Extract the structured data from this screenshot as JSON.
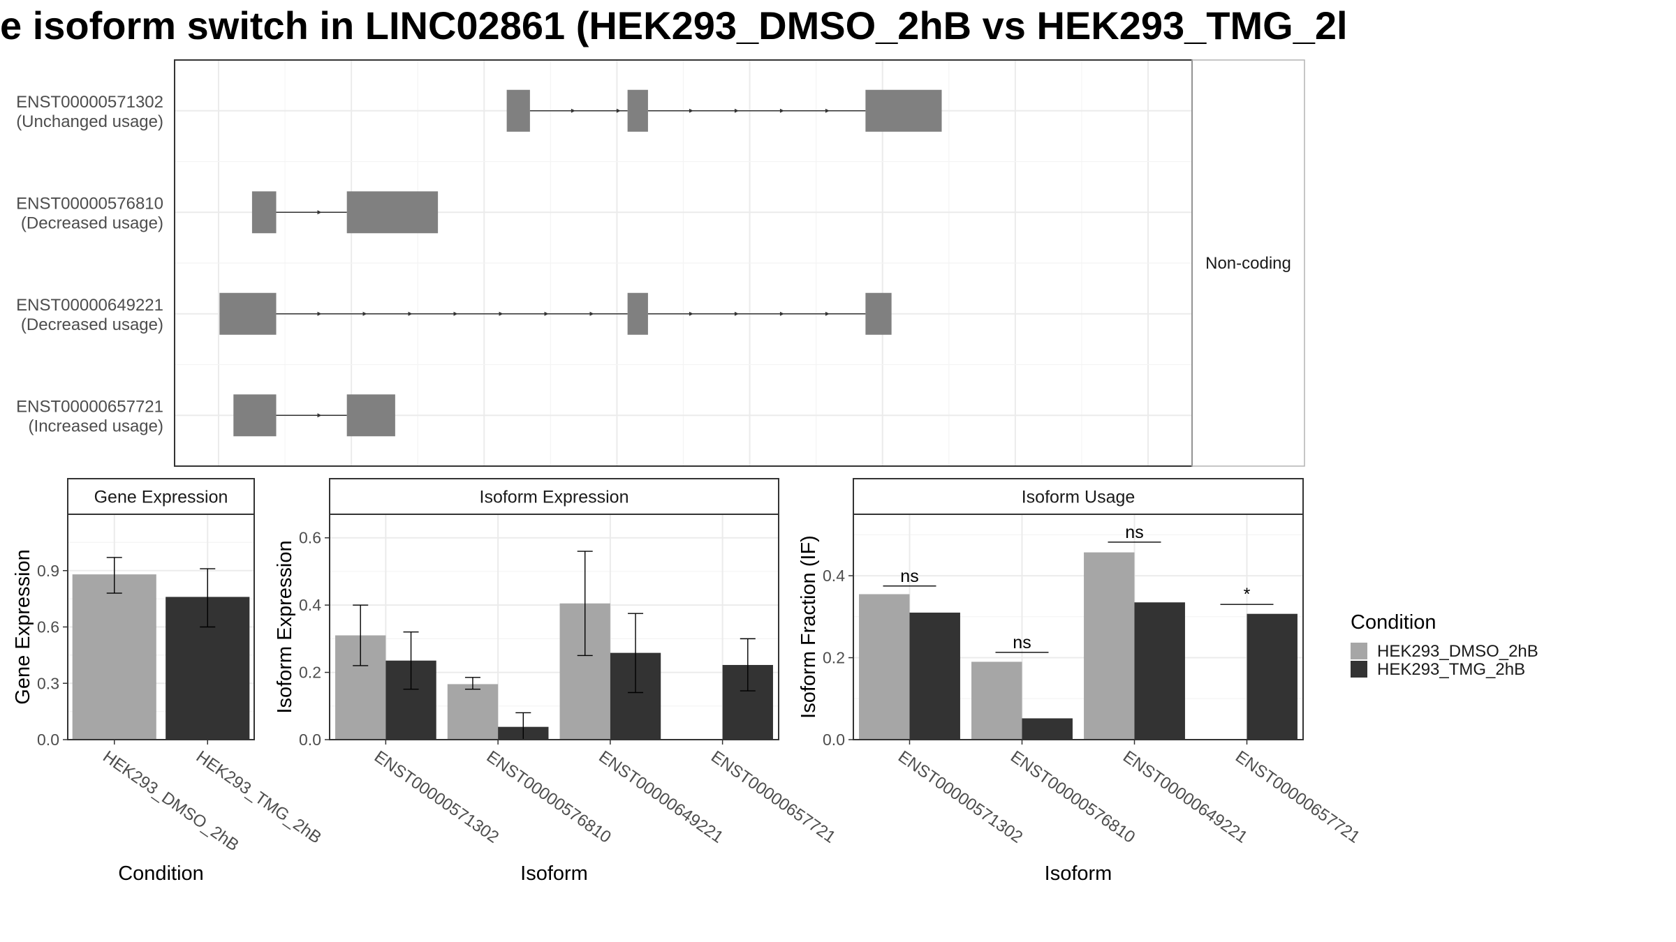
{
  "title": "e isoform switch in LINC02861 (HEK293_DMSO_2hB vs HEK293_TMG_2l",
  "colors": {
    "dmso": "#a6a6a6",
    "tmg": "#333333",
    "exon": "#808080",
    "grid": "#ebebeb",
    "frame": "#333333",
    "strip_bg": "#ffffff"
  },
  "chart_data": [
    {
      "type": "gene-structure",
      "facet_label": "Non-coding",
      "genomic_range": [
        0,
        1000
      ],
      "isoforms": [
        {
          "id": "ENST00000571302",
          "usage": "(Unchanged usage)",
          "exons": [
            [
              310,
              335
            ],
            [
              440,
              462
            ],
            [
              696,
              778
            ]
          ]
        },
        {
          "id": "ENST00000576810",
          "usage": "(Decreased usage)",
          "exons": [
            [
              36,
              62
            ],
            [
              138,
              236
            ]
          ]
        },
        {
          "id": "ENST00000649221",
          "usage": "(Decreased usage)",
          "exons": [
            [
              1,
              62
            ],
            [
              440,
              462
            ],
            [
              696,
              724
            ]
          ]
        },
        {
          "id": "ENST00000657721",
          "usage": "(Increased usage)",
          "exons": [
            [
              16,
              62
            ],
            [
              138,
              190
            ]
          ]
        }
      ]
    },
    {
      "type": "bar",
      "strip": "Gene Expression",
      "xlabel": "Condition",
      "ylabel": "Gene Expression",
      "ylim": [
        0,
        1.2
      ],
      "yticks": [
        "0.0",
        "0.3",
        "0.6",
        "0.9"
      ],
      "categories": [
        "HEK293_DMSO_2hB",
        "HEK293_TMG_2hB"
      ],
      "values": [
        0.88,
        0.76
      ],
      "error_low": [
        0.78,
        0.6
      ],
      "error_high": [
        0.97,
        0.91
      ]
    },
    {
      "type": "bar",
      "strip": "Isoform Expression",
      "xlabel": "Isoform",
      "ylabel": "Isoform Expression",
      "ylim": [
        0,
        0.67
      ],
      "yticks": [
        "0.0",
        "0.2",
        "0.4",
        "0.6"
      ],
      "categories": [
        "ENST00000571302",
        "ENST00000576810",
        "ENST00000649221",
        "ENST00000657721"
      ],
      "series": [
        {
          "name": "HEK293_DMSO_2hB",
          "values": [
            0.31,
            0.165,
            0.405,
            0.0
          ],
          "error_low": [
            0.22,
            0.15,
            0.25,
            0.0
          ],
          "error_high": [
            0.4,
            0.185,
            0.56,
            0.0
          ]
        },
        {
          "name": "HEK293_TMG_2hB",
          "values": [
            0.235,
            0.038,
            0.258,
            0.222
          ],
          "error_low": [
            0.15,
            0.0,
            0.14,
            0.145
          ],
          "error_high": [
            0.32,
            0.08,
            0.375,
            0.3
          ]
        }
      ]
    },
    {
      "type": "bar",
      "strip": "Isoform Usage",
      "xlabel": "Isoform",
      "ylabel": "Isoform Fraction (IF)",
      "ylim": [
        0,
        0.55
      ],
      "yticks": [
        "0.0",
        "0.2",
        "0.4"
      ],
      "categories": [
        "ENST00000571302",
        "ENST00000576810",
        "ENST00000649221",
        "ENST00000657721"
      ],
      "series": [
        {
          "name": "HEK293_DMSO_2hB",
          "values": [
            0.355,
            0.19,
            0.457,
            0.0
          ]
        },
        {
          "name": "HEK293_TMG_2hB",
          "values": [
            0.31,
            0.052,
            0.335,
            0.307
          ]
        }
      ],
      "significance": [
        "ns",
        "ns",
        "ns",
        "*"
      ],
      "significance_y": [
        0.375,
        0.213,
        0.482,
        0.33
      ]
    }
  ],
  "legend": {
    "title": "Condition",
    "items": [
      {
        "label": "HEK293_DMSO_2hB",
        "color": "#a6a6a6"
      },
      {
        "label": "HEK293_TMG_2hB",
        "color": "#333333"
      }
    ]
  }
}
